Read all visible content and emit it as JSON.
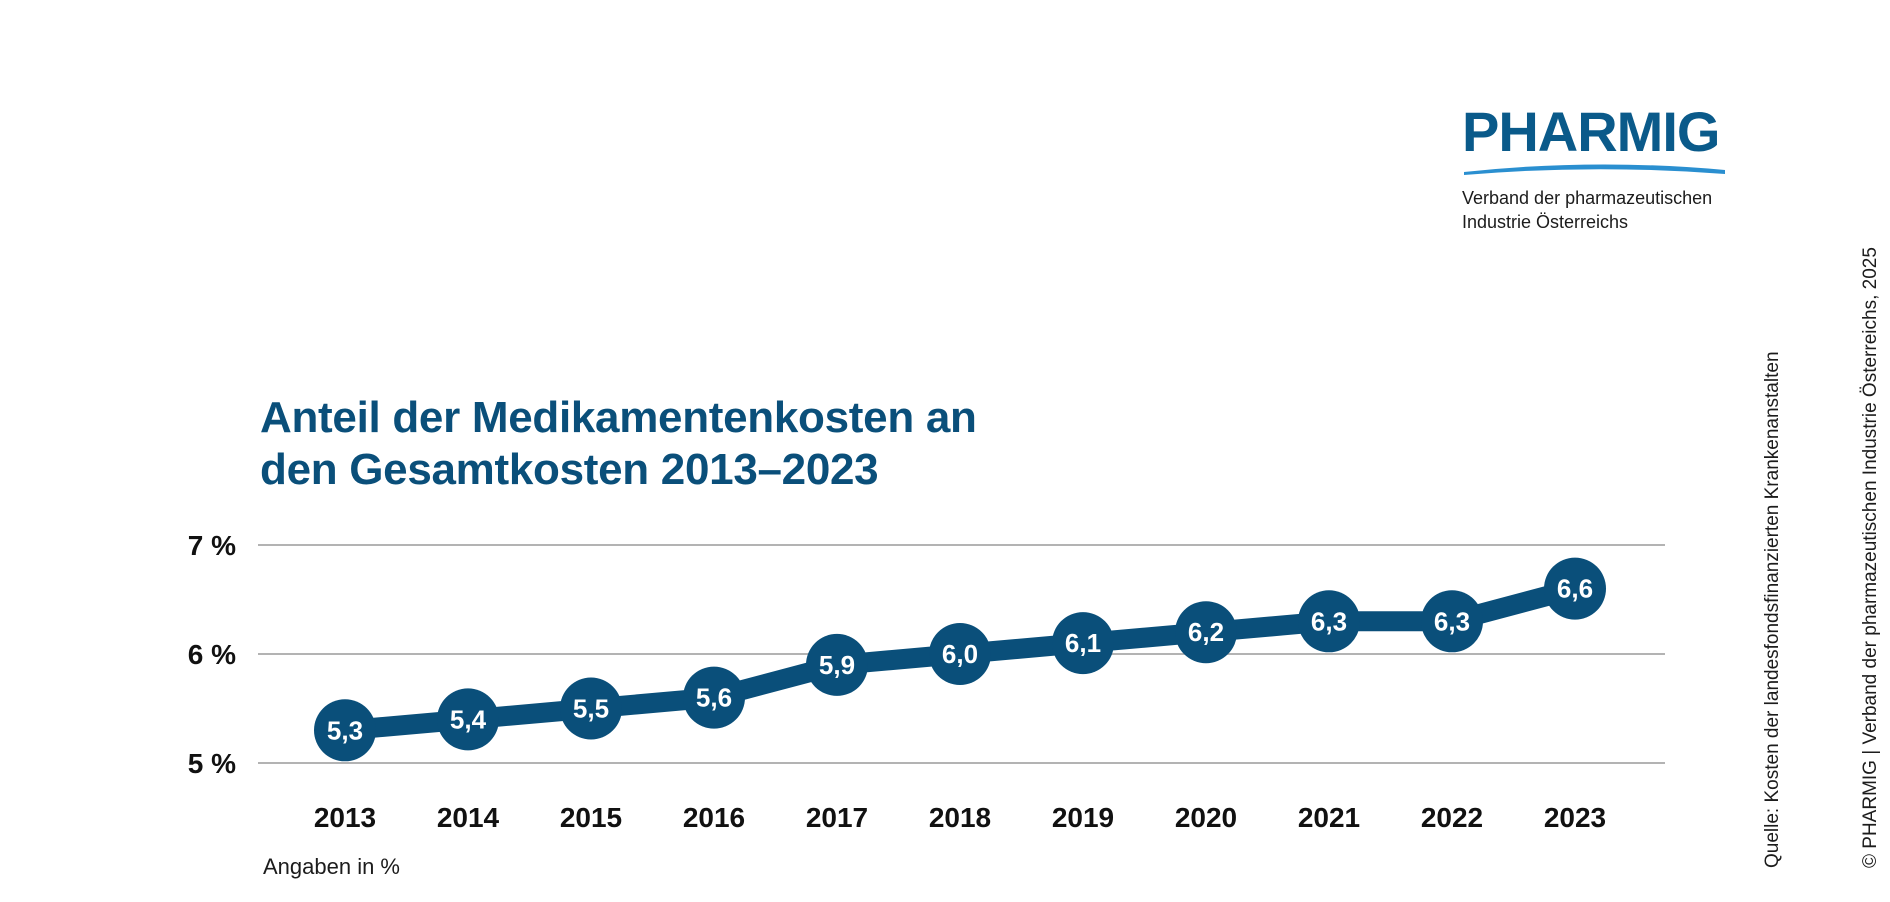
{
  "logo": {
    "wordmark": "PHARMIG",
    "subtitle_line1": "Verband der pharmazeutischen",
    "subtitle_line2": "Industrie Österreichs",
    "color": "#0a5a8a",
    "swoosh_color": "#2a8fd0"
  },
  "chart_data": {
    "type": "line",
    "title_line1": "Anteil der Medikamentenkosten an",
    "title_line2": "den Gesamtkosten 2013–2023",
    "categories": [
      "2013",
      "2014",
      "2015",
      "2016",
      "2017",
      "2018",
      "2019",
      "2020",
      "2021",
      "2022",
      "2023"
    ],
    "values": [
      5.3,
      5.4,
      5.5,
      5.6,
      5.9,
      6.0,
      6.1,
      6.2,
      6.3,
      6.3,
      6.6
    ],
    "value_labels": [
      "5,3",
      "5,4",
      "5,5",
      "5,6",
      "5,9",
      "6,0",
      "6,1",
      "6,2",
      "6,3",
      "6,3",
      "6,6"
    ],
    "yticks": [
      {
        "value": 5,
        "label": "5 %"
      },
      {
        "value": 6,
        "label": "6 %"
      },
      {
        "value": 7,
        "label": "7 %"
      }
    ],
    "ylim": [
      5,
      7
    ],
    "grid": true,
    "legend": "none",
    "line_color": "#0a4f7a",
    "grid_color": "#9a9a9a"
  },
  "note": "Angaben in %",
  "source": "Quelle: Kosten der landesfondsfinanzierten Krankenanstalten",
  "copyright": "© PHARMIG | Verband der pharmazeutischen Industrie Österreichs, 2025"
}
